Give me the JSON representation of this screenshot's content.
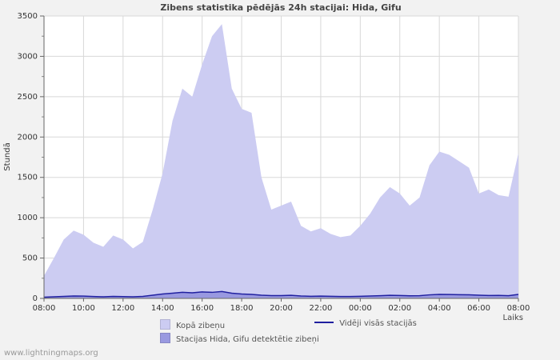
{
  "page": {
    "watermark": "www.lightningmaps.org"
  },
  "chart_data": {
    "type": "area",
    "title": "Zibens statistika pēdējās 24h stacijai: Hida, Gifu",
    "xlabel": "Laiks",
    "ylabel": "Stundā",
    "ylim": [
      0,
      3500
    ],
    "ytick_step": 500,
    "grid": true,
    "legend_position": "bottom",
    "x_step_hours": 0.5,
    "x_tick_labels": [
      "08:00",
      "10:00",
      "12:00",
      "14:00",
      "16:00",
      "18:00",
      "20:00",
      "22:00",
      "00:00",
      "02:00",
      "04:00",
      "06:00",
      "08:00"
    ],
    "series": [
      {
        "name": "Kopā zibeņu",
        "type": "area",
        "color": "#ccccf2",
        "values": [
          280,
          500,
          730,
          840,
          790,
          690,
          640,
          780,
          730,
          620,
          700,
          1100,
          1550,
          2200,
          2600,
          2500,
          2900,
          3250,
          3400,
          2600,
          2350,
          2300,
          1500,
          1100,
          1150,
          1200,
          900,
          830,
          870,
          800,
          760,
          780,
          900,
          1050,
          1250,
          1380,
          1300,
          1150,
          1250,
          1650,
          1820,
          1780,
          1700,
          1620,
          1300,
          1350,
          1280,
          1260,
          1800
        ]
      },
      {
        "name": "Stacijas Hida, Gifu detektētie zibeņi",
        "type": "area",
        "color": "#9999e0",
        "values": [
          10,
          15,
          20,
          25,
          20,
          18,
          15,
          20,
          18,
          15,
          20,
          35,
          50,
          60,
          70,
          65,
          75,
          70,
          80,
          60,
          50,
          45,
          35,
          30,
          30,
          32,
          25,
          22,
          24,
          22,
          20,
          20,
          22,
          26,
          30,
          34,
          32,
          28,
          30,
          40,
          45,
          44,
          42,
          40,
          35,
          32,
          33,
          30,
          45
        ]
      },
      {
        "name": "Vidēji visās stacijās",
        "type": "line",
        "color": "#2020a0",
        "values": [
          15,
          20,
          25,
          30,
          28,
          24,
          20,
          25,
          22,
          20,
          25,
          40,
          55,
          65,
          75,
          70,
          80,
          75,
          85,
          65,
          55,
          50,
          40,
          35,
          35,
          38,
          30,
          26,
          28,
          26,
          24,
          24,
          26,
          30,
          34,
          38,
          36,
          32,
          34,
          44,
          50,
          48,
          46,
          44,
          40,
          36,
          37,
          34,
          50
        ]
      }
    ]
  }
}
